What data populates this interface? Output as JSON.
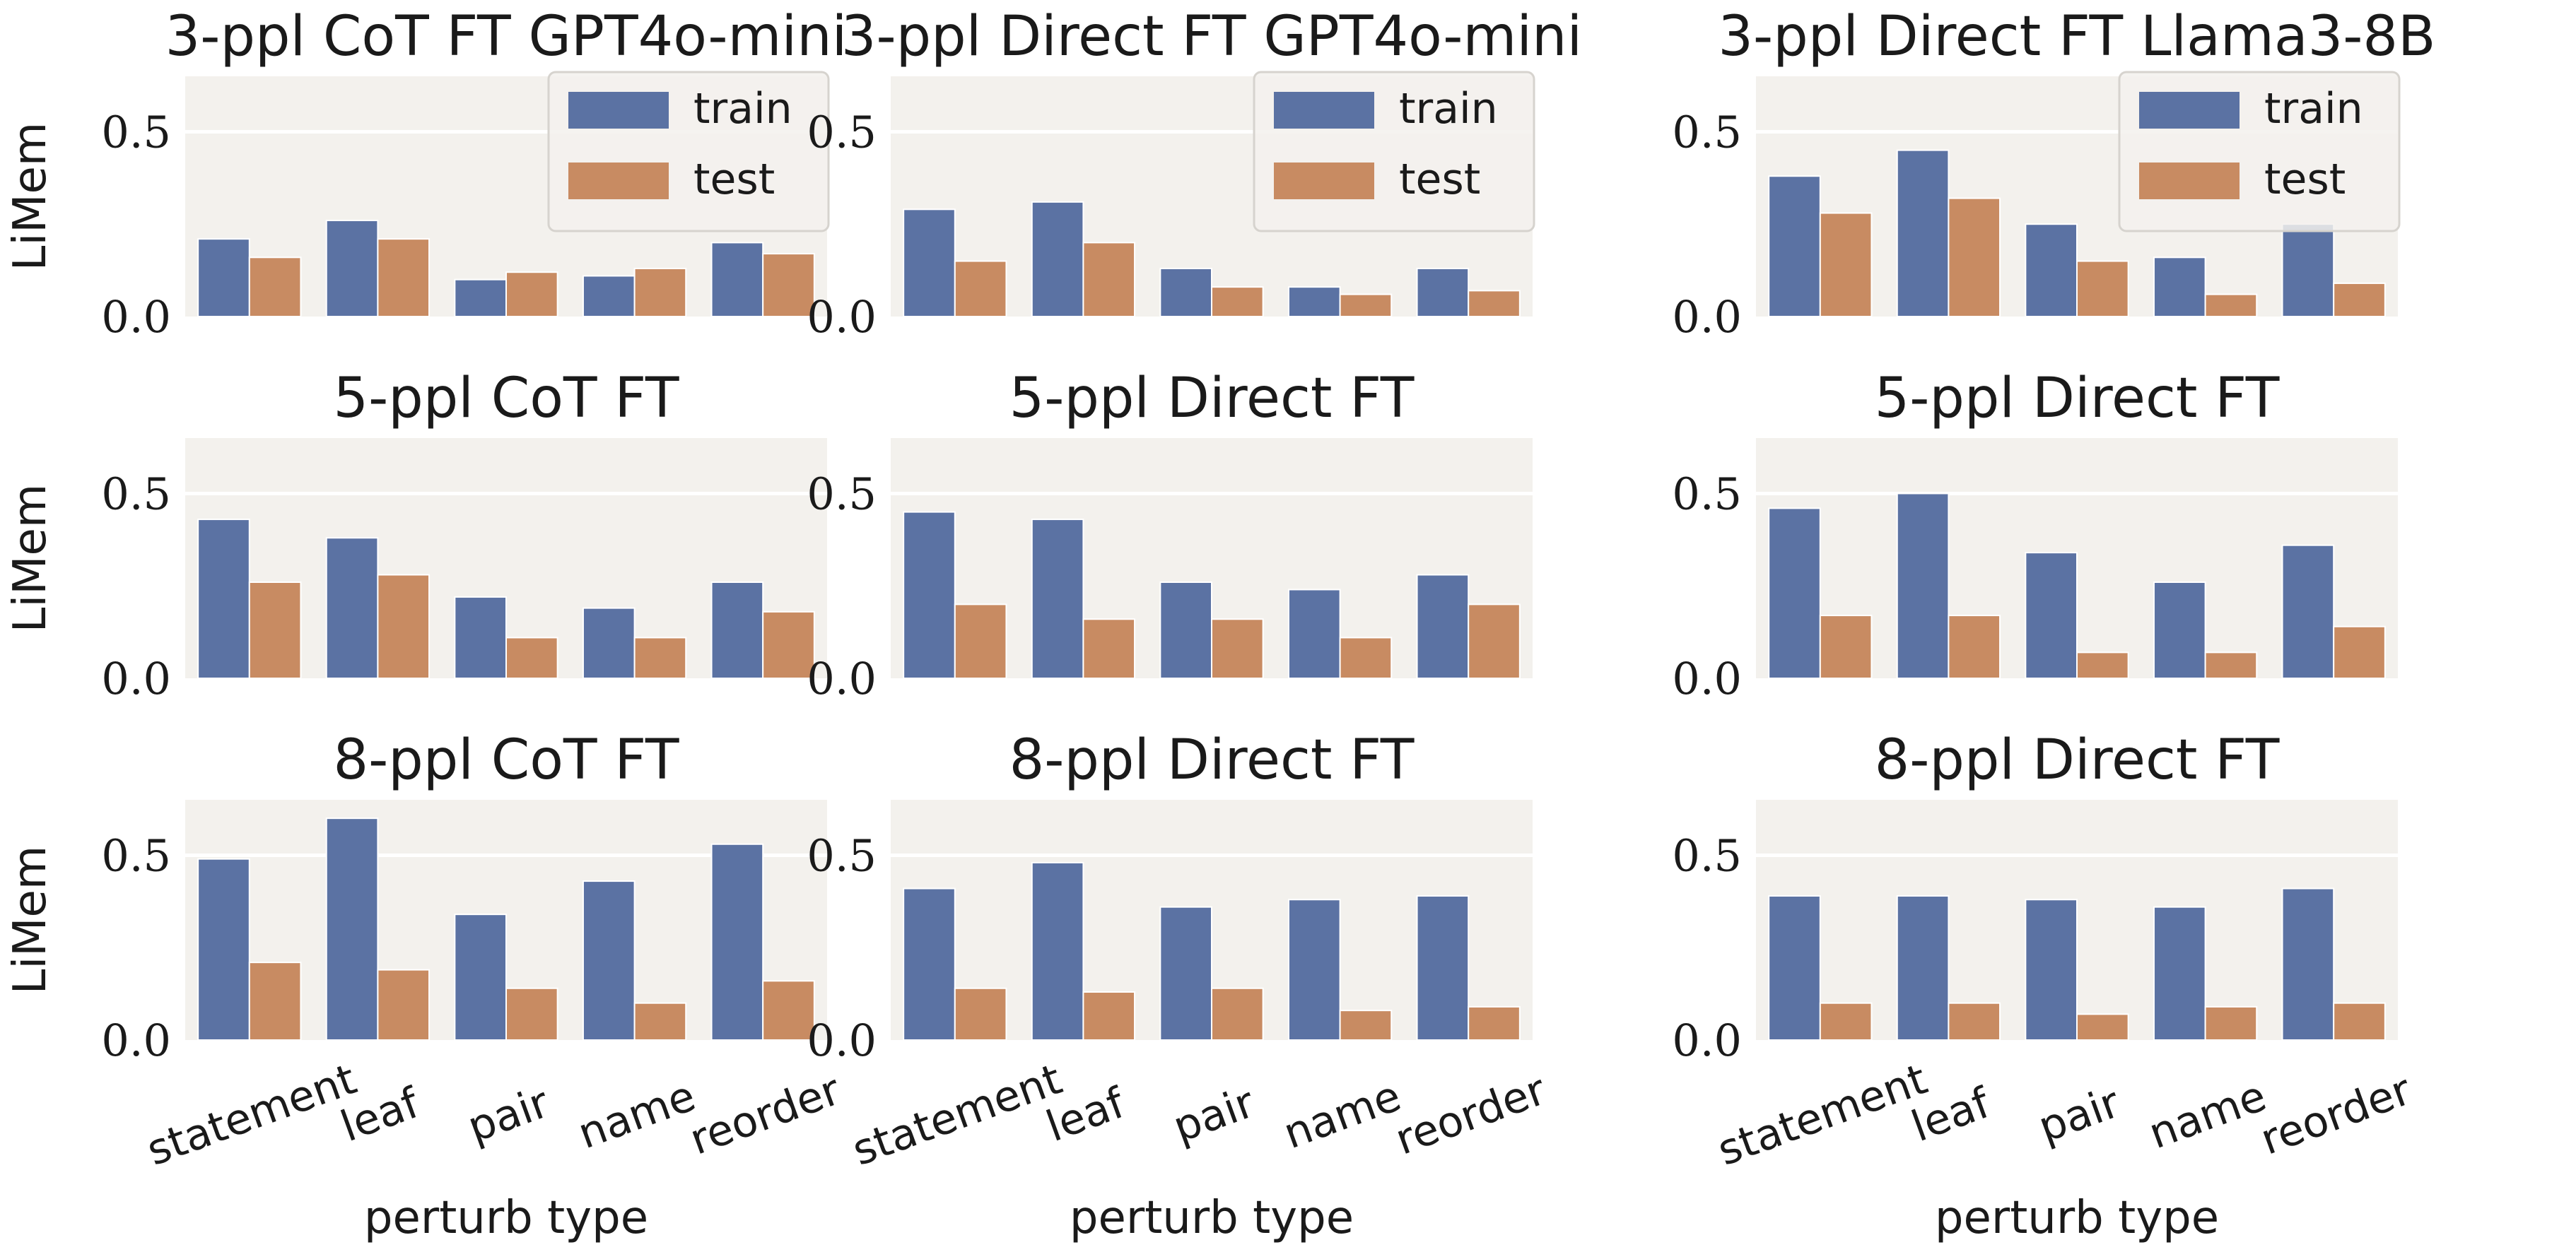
{
  "chart_data": [
    {
      "type": "bar",
      "title": "3-ppl CoT FT GPT4o-mini",
      "ylabel": "LiMem",
      "xlabel": "",
      "categories": [
        "statement",
        "leaf",
        "pair",
        "name",
        "reorder"
      ],
      "series": [
        {
          "name": "train",
          "values": [
            0.21,
            0.26,
            0.1,
            0.11,
            0.2
          ]
        },
        {
          "name": "test",
          "values": [
            0.16,
            0.21,
            0.12,
            0.13,
            0.17
          ]
        }
      ],
      "ylim": [
        0,
        0.65
      ],
      "yticks": [
        "0.0",
        "0.5"
      ],
      "legend": "top-right",
      "grid": true
    },
    {
      "type": "bar",
      "title": "3-ppl Direct FT GPT4o-mini",
      "ylabel": "",
      "xlabel": "",
      "categories": [
        "statement",
        "leaf",
        "pair",
        "name",
        "reorder"
      ],
      "series": [
        {
          "name": "train",
          "values": [
            0.29,
            0.31,
            0.13,
            0.08,
            0.13
          ]
        },
        {
          "name": "test",
          "values": [
            0.15,
            0.2,
            0.08,
            0.06,
            0.07
          ]
        }
      ],
      "ylim": [
        0,
        0.65
      ],
      "yticks": [
        "0.0",
        "0.5"
      ],
      "legend": "top-right",
      "grid": true
    },
    {
      "type": "bar",
      "title": "3-ppl Direct FT Llama3-8B",
      "ylabel": "",
      "xlabel": "",
      "categories": [
        "statement",
        "leaf",
        "pair",
        "name",
        "reorder"
      ],
      "series": [
        {
          "name": "train",
          "values": [
            0.38,
            0.45,
            0.25,
            0.16,
            0.25
          ]
        },
        {
          "name": "test",
          "values": [
            0.28,
            0.32,
            0.15,
            0.06,
            0.09
          ]
        }
      ],
      "ylim": [
        0,
        0.65
      ],
      "yticks": [
        "0.0",
        "0.5"
      ],
      "legend": "top-right",
      "grid": true
    },
    {
      "type": "bar",
      "title": "5-ppl CoT FT",
      "ylabel": "LiMem",
      "xlabel": "",
      "categories": [
        "statement",
        "leaf",
        "pair",
        "name",
        "reorder"
      ],
      "series": [
        {
          "name": "train",
          "values": [
            0.43,
            0.38,
            0.22,
            0.19,
            0.26
          ]
        },
        {
          "name": "test",
          "values": [
            0.26,
            0.28,
            0.11,
            0.11,
            0.18
          ]
        }
      ],
      "ylim": [
        0,
        0.65
      ],
      "yticks": [
        "0.0",
        "0.5"
      ],
      "grid": true
    },
    {
      "type": "bar",
      "title": "5-ppl Direct FT",
      "ylabel": "",
      "xlabel": "",
      "categories": [
        "statement",
        "leaf",
        "pair",
        "name",
        "reorder"
      ],
      "series": [
        {
          "name": "train",
          "values": [
            0.45,
            0.43,
            0.26,
            0.24,
            0.28
          ]
        },
        {
          "name": "test",
          "values": [
            0.2,
            0.16,
            0.16,
            0.11,
            0.2
          ]
        }
      ],
      "ylim": [
        0,
        0.65
      ],
      "yticks": [
        "0.0",
        "0.5"
      ],
      "grid": true
    },
    {
      "type": "bar",
      "title": "5-ppl Direct FT",
      "ylabel": "",
      "xlabel": "",
      "categories": [
        "statement",
        "leaf",
        "pair",
        "name",
        "reorder"
      ],
      "series": [
        {
          "name": "train",
          "values": [
            0.46,
            0.5,
            0.34,
            0.26,
            0.36
          ]
        },
        {
          "name": "test",
          "values": [
            0.17,
            0.17,
            0.07,
            0.07,
            0.14
          ]
        }
      ],
      "ylim": [
        0,
        0.65
      ],
      "yticks": [
        "0.0",
        "0.5"
      ],
      "grid": true
    },
    {
      "type": "bar",
      "title": "8-ppl CoT FT",
      "ylabel": "LiMem",
      "xlabel": "perturb type",
      "categories": [
        "statement",
        "leaf",
        "pair",
        "name",
        "reorder"
      ],
      "series": [
        {
          "name": "train",
          "values": [
            0.49,
            0.6,
            0.34,
            0.43,
            0.53
          ]
        },
        {
          "name": "test",
          "values": [
            0.21,
            0.19,
            0.14,
            0.1,
            0.16
          ]
        }
      ],
      "ylim": [
        0,
        0.65
      ],
      "yticks": [
        "0.0",
        "0.5"
      ],
      "grid": true
    },
    {
      "type": "bar",
      "title": "8-ppl Direct FT",
      "ylabel": "",
      "xlabel": "perturb type",
      "categories": [
        "statement",
        "leaf",
        "pair",
        "name",
        "reorder"
      ],
      "series": [
        {
          "name": "train",
          "values": [
            0.41,
            0.48,
            0.36,
            0.38,
            0.39
          ]
        },
        {
          "name": "test",
          "values": [
            0.14,
            0.13,
            0.14,
            0.08,
            0.09
          ]
        }
      ],
      "ylim": [
        0,
        0.65
      ],
      "yticks": [
        "0.0",
        "0.5"
      ],
      "grid": true
    },
    {
      "type": "bar",
      "title": "8-ppl Direct FT",
      "ylabel": "",
      "xlabel": "perturb type",
      "categories": [
        "statement",
        "leaf",
        "pair",
        "name",
        "reorder"
      ],
      "series": [
        {
          "name": "train",
          "values": [
            0.39,
            0.39,
            0.38,
            0.36,
            0.41
          ]
        },
        {
          "name": "test",
          "values": [
            0.1,
            0.1,
            0.07,
            0.09,
            0.1
          ]
        }
      ],
      "ylim": [
        0,
        0.65
      ],
      "yticks": [
        "0.0",
        "0.5"
      ],
      "grid": true
    }
  ],
  "colors": {
    "train": "#5b72a3",
    "test": "#c88b62",
    "plot_background": "#f3f1ed",
    "grid": "#ffffff"
  }
}
